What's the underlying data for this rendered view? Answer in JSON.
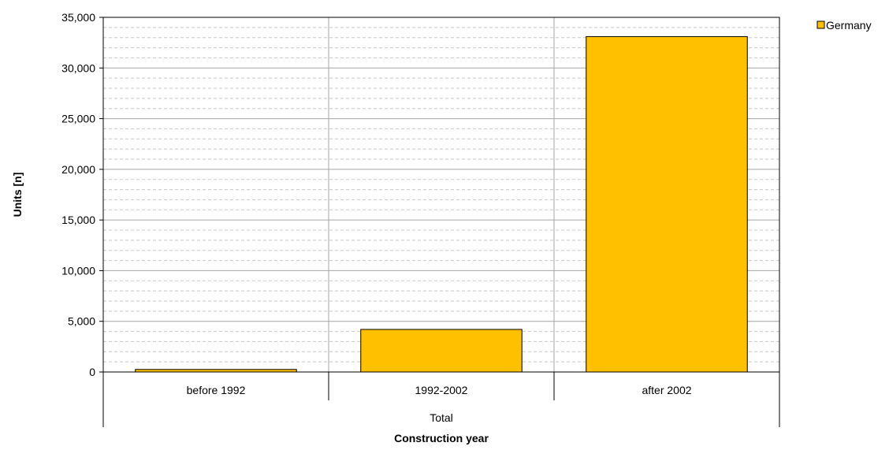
{
  "chart_data": {
    "type": "bar",
    "categories": [
      "before 1992",
      "1992-2002",
      "after 2002"
    ],
    "group_label": "Total",
    "series": [
      {
        "name": "Germany",
        "values": [
          250,
          4200,
          33100
        ]
      }
    ],
    "xlabel": "Construction year",
    "ylabel": "Units [n]",
    "ylim": [
      0,
      35000
    ],
    "yticks": [
      "0",
      "5,000",
      "10,000",
      "15,000",
      "20,000",
      "25,000",
      "30,000",
      "35,000"
    ],
    "minor_grid_step": 1000,
    "grid": true,
    "legend_position": "top-right",
    "colors": {
      "bar": "#FFC000",
      "bar_edge": "#000000",
      "major_grid": "#A6A6A6",
      "minor_grid": "#C8C8C8"
    }
  }
}
